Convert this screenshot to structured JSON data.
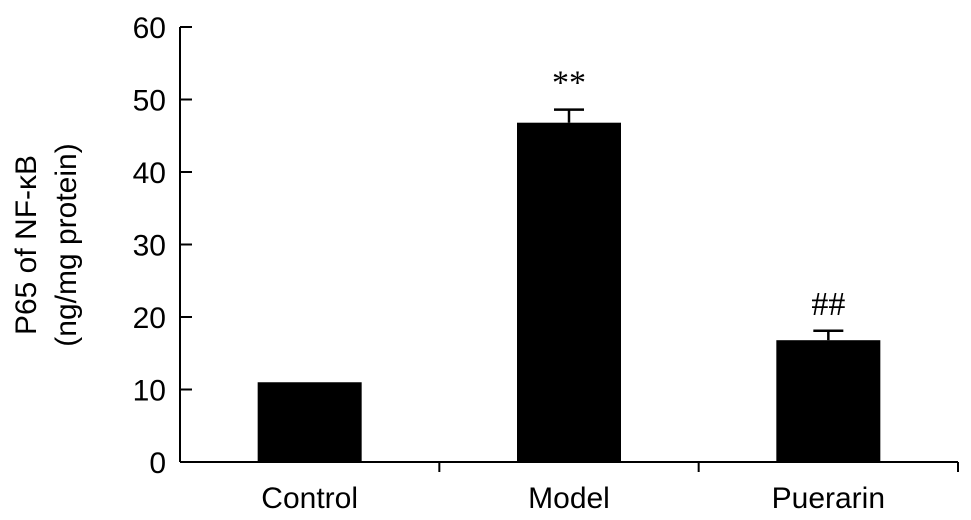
{
  "chart_data": {
    "type": "bar",
    "categories": [
      "Control",
      "Model",
      "Puerarin"
    ],
    "values": [
      11,
      46.8,
      16.8
    ],
    "errors": [
      0,
      1.8,
      1.3
    ],
    "annotations": [
      "",
      "**",
      "##"
    ],
    "ylabel_lines": [
      "P65 of NF-κB",
      "(ng/mg protein)"
    ],
    "ylim": [
      0,
      60
    ],
    "yticks": [
      0,
      10,
      20,
      30,
      40,
      50,
      60
    ],
    "bar_color": "#000000",
    "grid": false,
    "legend": "none"
  }
}
